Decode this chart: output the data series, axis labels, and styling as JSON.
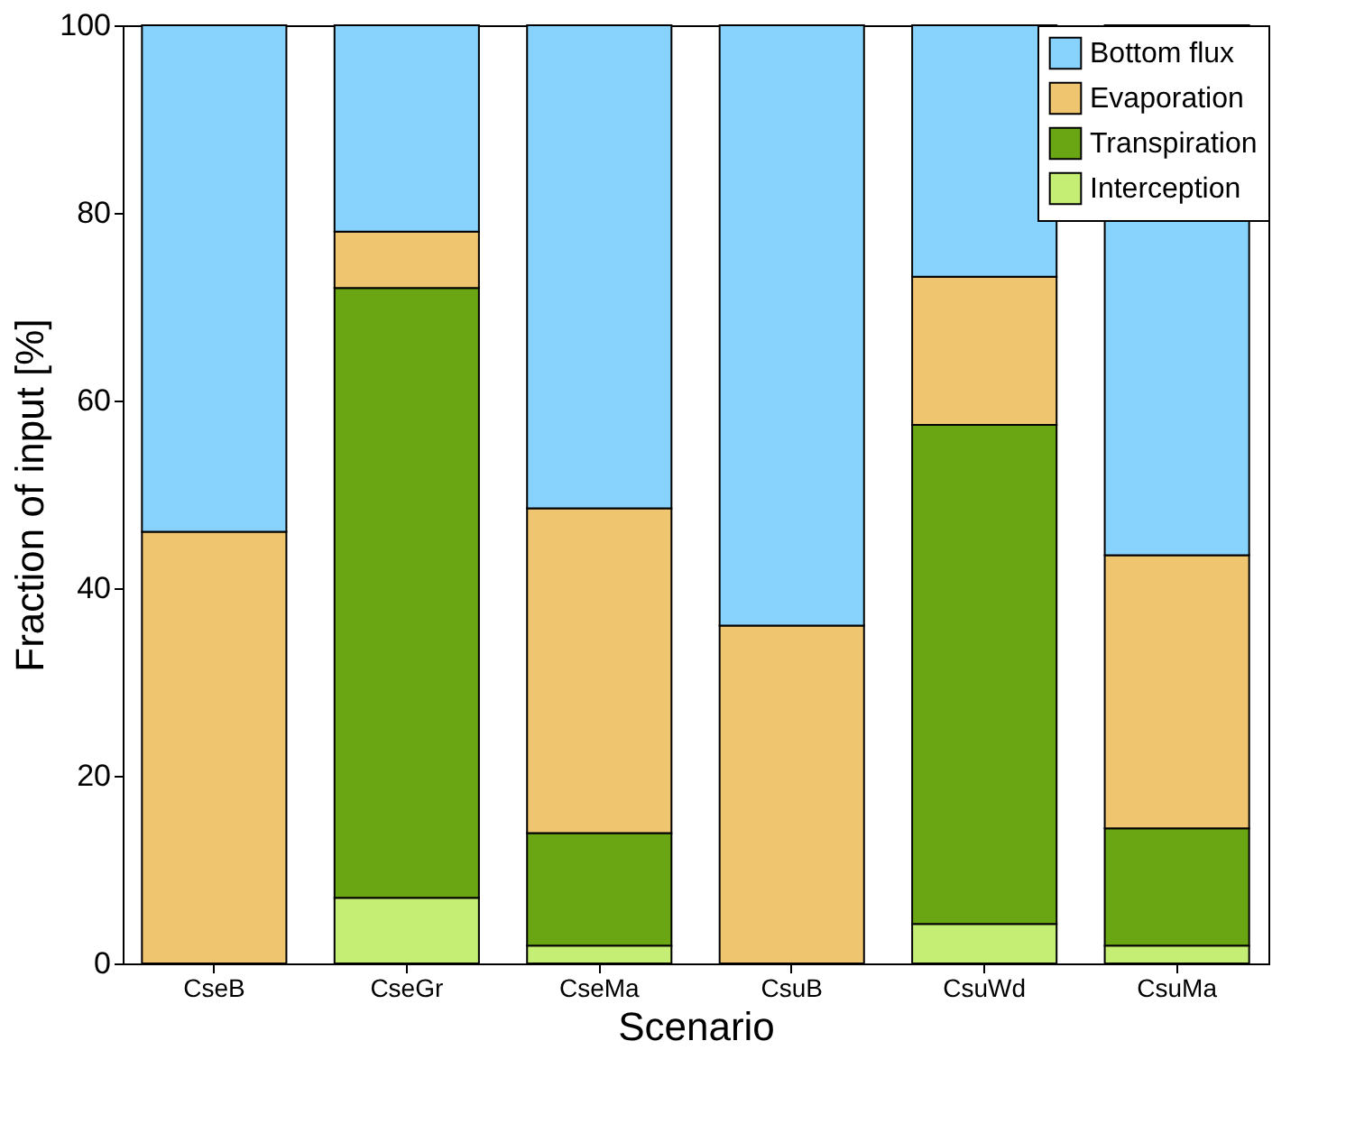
{
  "chart_data": {
    "type": "bar",
    "stacked": true,
    "xlabel": "Scenario",
    "ylabel": "Fraction of input [%]",
    "categories": [
      "CseB",
      "CseGr",
      "CseMa",
      "CsuB",
      "CsuWd",
      "CsuMa"
    ],
    "series": [
      {
        "name": "Interception",
        "color": "#c5ee74",
        "values": [
          null,
          7.0,
          1.9,
          null,
          4.2,
          1.9
        ]
      },
      {
        "name": "Transpiration",
        "color": "#6aa614",
        "values": [
          null,
          65.0,
          12.0,
          null,
          53.2,
          12.5
        ]
      },
      {
        "name": "Evaporation",
        "color": "#f0c570",
        "values": [
          46.0,
          6.0,
          34.6,
          36.0,
          15.8,
          29.1
        ]
      },
      {
        "name": "Bottom flux",
        "color": "#87d3fe",
        "values": [
          54.0,
          22.0,
          51.5,
          64.0,
          26.8,
          56.5
        ]
      }
    ],
    "ylim": [
      0,
      100
    ],
    "yticks": [
      0,
      20,
      40,
      60,
      80,
      100
    ],
    "grid": false,
    "legend": "top right"
  }
}
